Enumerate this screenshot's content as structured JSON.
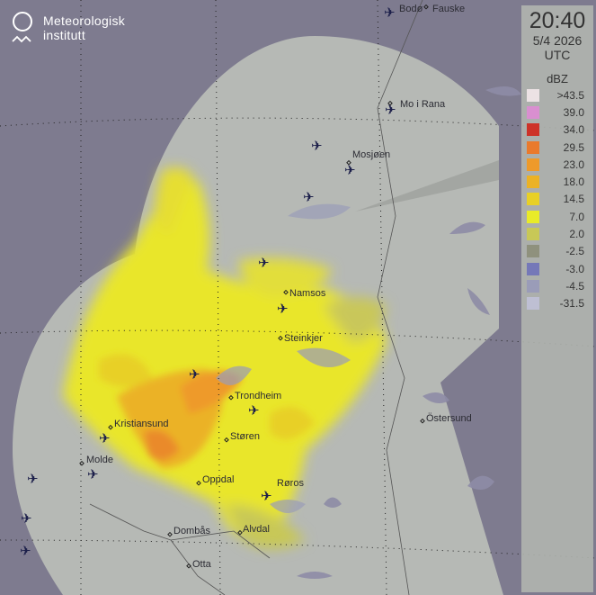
{
  "brand": {
    "name_line1": "Meteorologisk",
    "name_line2": "institutt"
  },
  "timestamp": {
    "time": "20:40",
    "date": "5/4 2026",
    "zone": "UTC"
  },
  "legend": {
    "unit": "dBZ",
    "items": [
      {
        "label": ">43.5",
        "color": "#ece2e4"
      },
      {
        "label": "39.0",
        "color": "#d98fd0"
      },
      {
        "label": "34.0",
        "color": "#cd3228"
      },
      {
        "label": "29.5",
        "color": "#ea7a2c"
      },
      {
        "label": "23.0",
        "color": "#ee9a2a"
      },
      {
        "label": "18.0",
        "color": "#ebb226"
      },
      {
        "label": "14.5",
        "color": "#e8d026"
      },
      {
        "label": "7.0",
        "color": "#e9eb28"
      },
      {
        "label": "2.0",
        "color": "#c8c857"
      },
      {
        "label": "-2.5",
        "color": "#8f917d"
      },
      {
        "label": "-3.0",
        "color": "#7578b8"
      },
      {
        "label": "-4.5",
        "color": "#9a9cb8"
      },
      {
        "label": "-31.5",
        "color": "#bebfd3"
      }
    ]
  },
  "cities": {
    "bodo": "Bodø",
    "fauske": "Fauske",
    "mo_i_rana": "Mo i Rana",
    "mosjoen": "Mosjøen",
    "namsos": "Namsos",
    "steinkjer": "Steinkjer",
    "trondheim": "Trondheim",
    "kristiansund": "Kristiansund",
    "molde": "Molde",
    "storen": "Støren",
    "oppdal": "Oppdal",
    "roros": "Røros",
    "ostersund": "Östersund",
    "dombas": "Dombås",
    "alvdal": "Alvdal",
    "otta": "Otta"
  },
  "colors": {
    "background": "#7e7b8f",
    "coverage": "#b6b9b5",
    "airport": "#1c1f4a"
  }
}
